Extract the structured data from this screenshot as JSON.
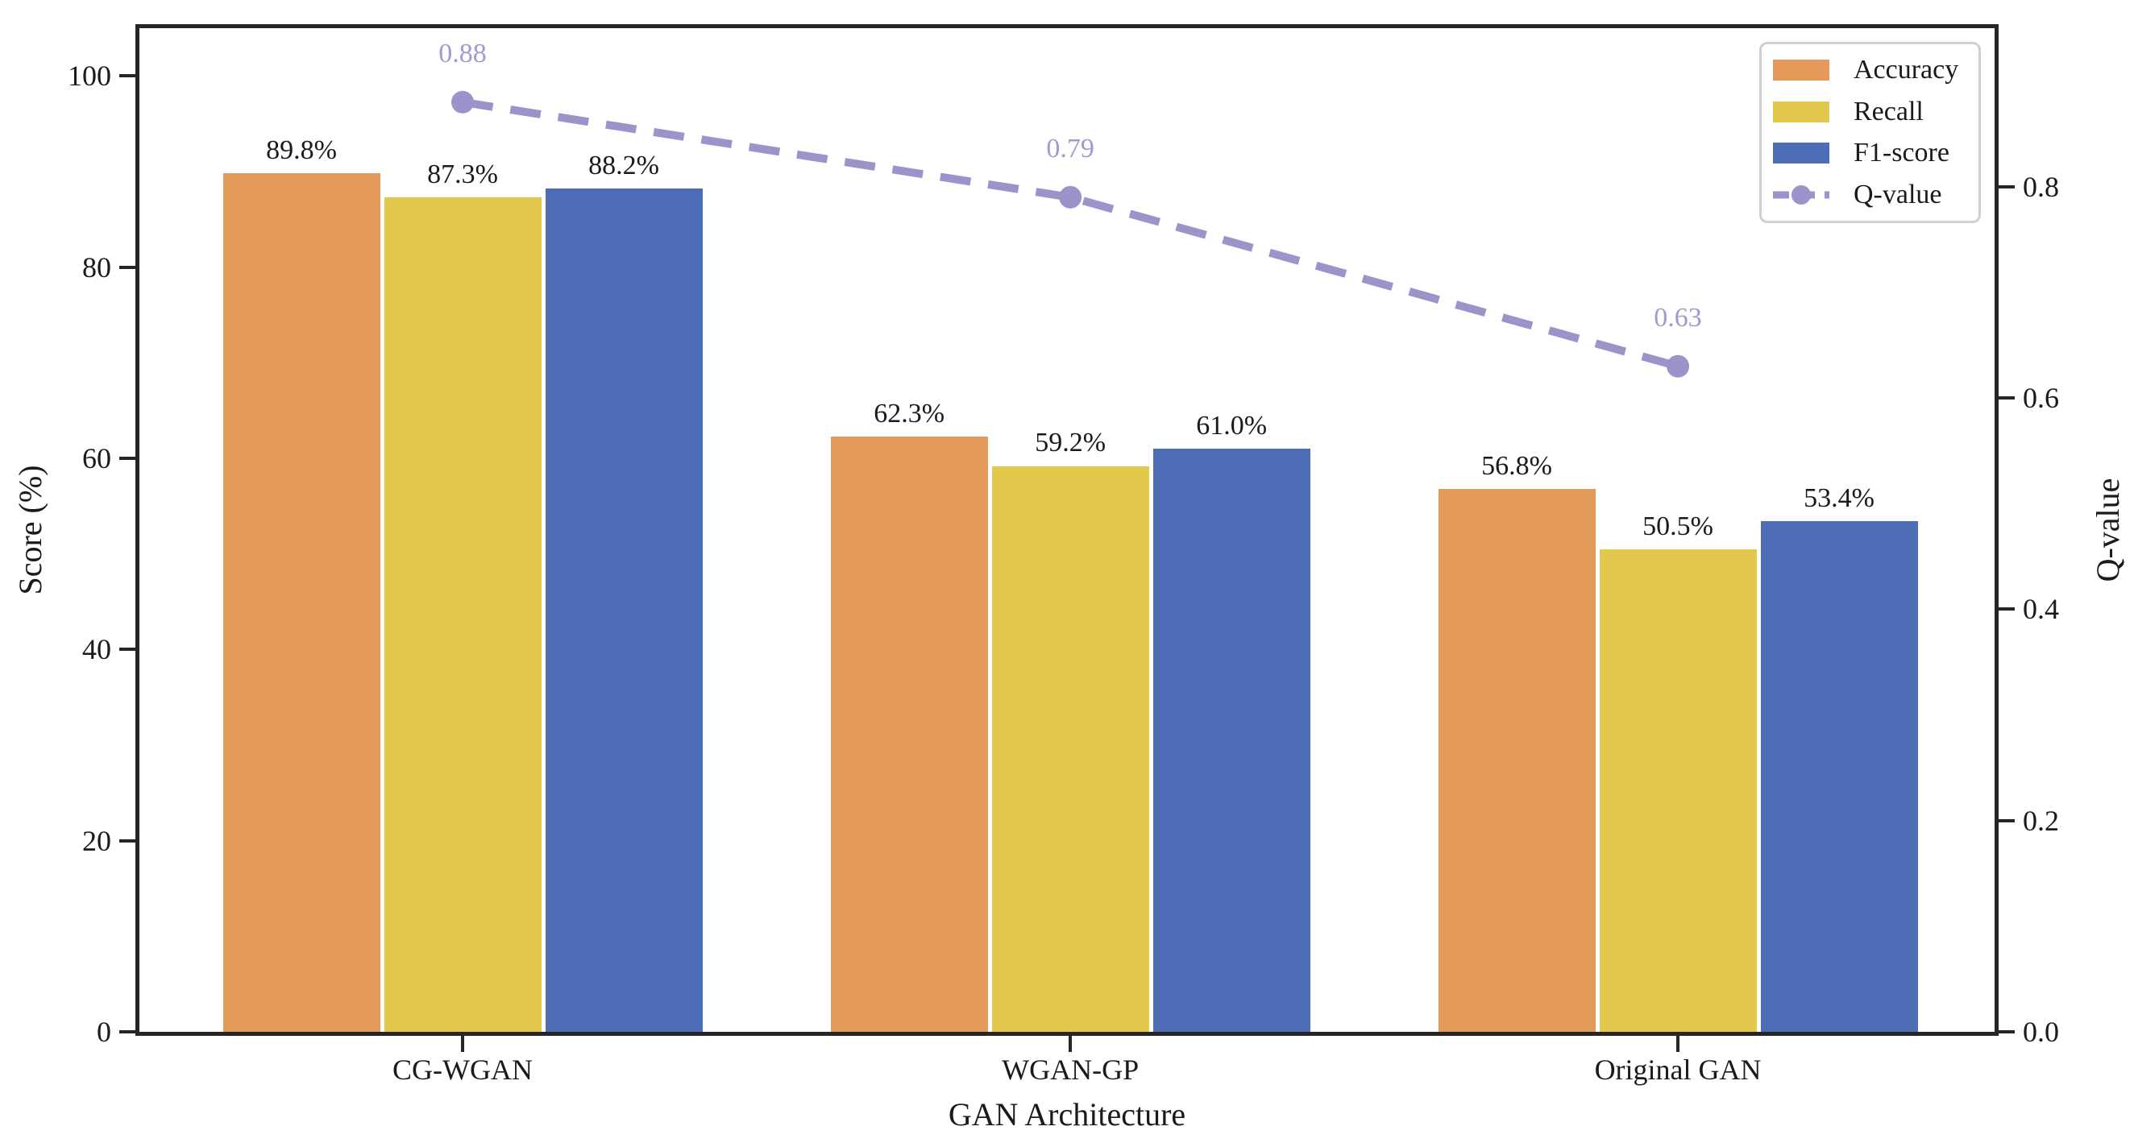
{
  "figure": {
    "background": "#ffffff",
    "frame_color": "#262626",
    "text_color": "#1a1a1a",
    "legend_border_color": "#cfcfcf"
  },
  "chart_data": {
    "type": "bar",
    "subtype": "grouped-bars-with-line-overlay",
    "categories": [
      "CG-WGAN",
      "WGAN-GP",
      "Original GAN"
    ],
    "series": [
      {
        "name": "Accuracy",
        "kind": "bar",
        "axis": "left",
        "color": "#e49a5a",
        "values": [
          89.8,
          62.3,
          56.8
        ],
        "value_labels": [
          "89.8%",
          "62.3%",
          "56.8%"
        ]
      },
      {
        "name": "Recall",
        "kind": "bar",
        "axis": "left",
        "color": "#e2c84c",
        "values": [
          87.3,
          59.2,
          50.5
        ],
        "value_labels": [
          "87.3%",
          "59.2%",
          "50.5%"
        ]
      },
      {
        "name": "F1-score",
        "kind": "bar",
        "axis": "left",
        "color": "#4d6db6",
        "values": [
          88.2,
          61.0,
          53.4
        ],
        "value_labels": [
          "88.2%",
          "61.0%",
          "53.4%"
        ]
      },
      {
        "name": "Q-value",
        "kind": "line",
        "axis": "right",
        "color": "#9b93c9",
        "label_color": "#a09ace",
        "line_style": "dashed",
        "marker": "circle",
        "values": [
          0.88,
          0.79,
          0.63
        ],
        "value_labels": [
          "0.88",
          "0.79",
          "0.63"
        ]
      }
    ],
    "xlabel": "GAN Architecture",
    "left_axis": {
      "label": "Score (%)",
      "lim": [
        0,
        105
      ],
      "tick_values": [
        0,
        20,
        40,
        60,
        80,
        100
      ],
      "tick_labels": [
        "0",
        "20",
        "40",
        "60",
        "80",
        "100"
      ]
    },
    "right_axis": {
      "label": "Q-value",
      "lim": [
        0,
        0.95
      ],
      "tick_values": [
        0.0,
        0.2,
        0.4,
        0.6,
        0.8
      ],
      "tick_labels": [
        "0.0",
        "0.2",
        "0.4",
        "0.6",
        "0.8"
      ]
    },
    "legend": {
      "position": "top-right",
      "entries": [
        "Accuracy",
        "Recall",
        "F1-score",
        "Q-value"
      ]
    },
    "grid": false
  }
}
